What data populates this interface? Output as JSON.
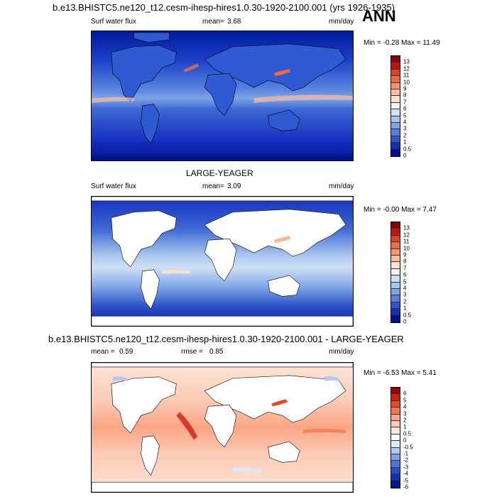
{
  "header": {
    "title": "b.e13.BHISTC5.ne120_t12.cesm-ihesp-hires1.0.30-1920-2100.001 (yrs 1926-1935)",
    "season": "ANN"
  },
  "panel1": {
    "variable": "Surf water flux",
    "mean_label": "mean=",
    "mean_value": "3.68",
    "units": "mm/day",
    "minmax": "Min = -0.28 Max = 11.49",
    "colorbar_levels": [
      "13",
      "12",
      "11",
      "10",
      "9",
      "8",
      "7",
      "6",
      "5",
      "4",
      "3",
      "2",
      "1",
      "0.5",
      "0"
    ]
  },
  "panel2": {
    "title": "LARGE-YEAGER",
    "variable": "Surf water flux",
    "mean_label": "mean=",
    "mean_value": "3.09",
    "units": "mm/day",
    "minmax": "Min = -0.00 Max =  7.47",
    "colorbar_levels": [
      "13",
      "12",
      "11",
      "10",
      "9",
      "8",
      "7",
      "6",
      "5",
      "4",
      "3",
      "2",
      "1",
      "0.5",
      "0"
    ]
  },
  "panel3": {
    "title": "b.e13.BHISTC5.ne120_t12.cesm-ihesp-hires1.0.30-1920-2100.001 - LARGE-YEAGER",
    "mean_label": "mean =",
    "mean_value": "0.59",
    "rmse_label": "rmse =",
    "rmse_value": "0.85",
    "units": "mm/day",
    "minmax": "Min = -6.53 Max =  5.41",
    "colorbar_levels": [
      "6",
      "5",
      "4",
      "3",
      "2",
      "1",
      "0.5",
      "0",
      "-0.5",
      "-1",
      "-2",
      "-3",
      "-4",
      "-5",
      "-6"
    ]
  },
  "colors": {
    "seq": [
      "#8c0000",
      "#c2140f",
      "#e0401f",
      "#f06a3e",
      "#f7946b",
      "#fbbd9c",
      "#fde0cf",
      "#f4f4f4",
      "#cfe0f5",
      "#a8c4ee",
      "#7fa4e6",
      "#557fdc",
      "#3056cf",
      "#1230bd",
      "#000f96"
    ],
    "div": [
      "#a00000",
      "#d02010",
      "#ea4a22",
      "#f57850",
      "#faa584",
      "#fccab4",
      "#fde6d8",
      "#ffffff",
      "#dce8f7",
      "#b0c8ef",
      "#7fa2e4",
      "#4f78d6",
      "#2a50c8",
      "#1030b4",
      "#001a8c"
    ]
  }
}
